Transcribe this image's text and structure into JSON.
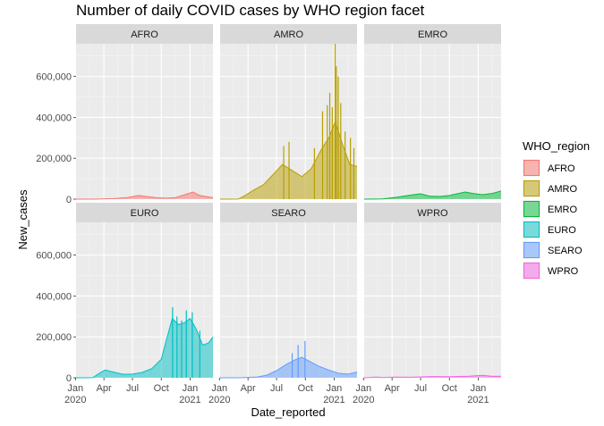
{
  "chart_data": {
    "type": "area",
    "title": "Number of daily COVID cases by WHO region facet",
    "xlabel": "Date_reported",
    "ylabel": "New_cases",
    "ylim": [
      0,
      760000
    ],
    "xlim": [
      "2020-01-03",
      "2021-03-15"
    ],
    "grid": true,
    "facet_layout": {
      "rows": 2,
      "cols": 3
    },
    "x_ticks": [
      {
        "date": "2020-01-01",
        "label": [
          "Jan",
          "2020"
        ]
      },
      {
        "date": "2020-04-01",
        "label": [
          "Apr"
        ]
      },
      {
        "date": "2020-07-01",
        "label": [
          "Jul"
        ]
      },
      {
        "date": "2020-10-01",
        "label": [
          "Oct"
        ]
      },
      {
        "date": "2021-01-01",
        "label": [
          "Jan",
          "2021"
        ]
      }
    ],
    "y_ticks": [
      {
        "value": 0,
        "label": "0"
      },
      {
        "value": 200000,
        "label": "200,000"
      },
      {
        "value": 400000,
        "label": "400,000"
      },
      {
        "value": 600000,
        "label": "600,000"
      }
    ],
    "legend": {
      "title": "WHO_region",
      "position": "right"
    },
    "series": [
      {
        "name": "AFRO",
        "color": "#F8766D",
        "points": [
          [
            "2020-01-03",
            0
          ],
          [
            "2020-03-01",
            100
          ],
          [
            "2020-05-01",
            2500
          ],
          [
            "2020-06-15",
            8000
          ],
          [
            "2020-07-20",
            18000
          ],
          [
            "2020-08-15",
            13000
          ],
          [
            "2020-09-15",
            7000
          ],
          [
            "2020-10-15",
            5000
          ],
          [
            "2020-11-15",
            8000
          ],
          [
            "2020-12-15",
            22000
          ],
          [
            "2021-01-10",
            35000
          ],
          [
            "2021-02-01",
            18000
          ],
          [
            "2021-03-15",
            7000
          ]
        ]
      },
      {
        "name": "AMRO",
        "color": "#B79F00",
        "points": [
          [
            "2020-01-03",
            0
          ],
          [
            "2020-03-01",
            500
          ],
          [
            "2020-03-25",
            20000
          ],
          [
            "2020-04-20",
            45000
          ],
          [
            "2020-05-20",
            70000
          ],
          [
            "2020-06-20",
            120000
          ],
          [
            "2020-07-20",
            170000
          ],
          [
            "2020-08-20",
            140000
          ],
          [
            "2020-09-20",
            110000
          ],
          [
            "2020-10-20",
            150000
          ],
          [
            "2020-11-20",
            240000
          ],
          [
            "2020-12-15",
            300000
          ],
          [
            "2021-01-05",
            380000
          ],
          [
            "2021-01-25",
            280000
          ],
          [
            "2021-02-20",
            170000
          ],
          [
            "2021-03-15",
            160000
          ]
        ],
        "spikes": [
          [
            "2020-07-24",
            260000
          ],
          [
            "2020-08-10",
            280000
          ],
          [
            "2020-10-30",
            250000
          ],
          [
            "2020-11-25",
            430000
          ],
          [
            "2020-12-10",
            460000
          ],
          [
            "2020-12-18",
            520000
          ],
          [
            "2020-12-26",
            450000
          ],
          [
            "2021-01-04",
            760000
          ],
          [
            "2021-01-08",
            650000
          ],
          [
            "2021-01-14",
            600000
          ],
          [
            "2021-01-22",
            470000
          ],
          [
            "2021-02-05",
            330000
          ],
          [
            "2021-02-22",
            300000
          ],
          [
            "2021-03-05",
            250000
          ]
        ]
      },
      {
        "name": "EMRO",
        "color": "#00BA38",
        "points": [
          [
            "2020-01-03",
            0
          ],
          [
            "2020-03-01",
            800
          ],
          [
            "2020-04-15",
            9000
          ],
          [
            "2020-06-01",
            20000
          ],
          [
            "2020-07-01",
            26000
          ],
          [
            "2020-08-01",
            14000
          ],
          [
            "2020-09-01",
            13000
          ],
          [
            "2020-10-01",
            18000
          ],
          [
            "2020-11-20",
            35000
          ],
          [
            "2020-12-15",
            28000
          ],
          [
            "2021-01-15",
            22000
          ],
          [
            "2021-02-15",
            28000
          ],
          [
            "2021-03-15",
            40000
          ]
        ]
      },
      {
        "name": "EURO",
        "color": "#00BFC4",
        "points": [
          [
            "2020-01-03",
            0
          ],
          [
            "2020-02-25",
            500
          ],
          [
            "2020-03-20",
            25000
          ],
          [
            "2020-04-05",
            38000
          ],
          [
            "2020-05-01",
            28000
          ],
          [
            "2020-06-01",
            17000
          ],
          [
            "2020-07-01",
            18000
          ],
          [
            "2020-08-01",
            26000
          ],
          [
            "2020-09-01",
            45000
          ],
          [
            "2020-10-01",
            90000
          ],
          [
            "2020-10-20",
            200000
          ],
          [
            "2020-11-05",
            290000
          ],
          [
            "2020-11-25",
            260000
          ],
          [
            "2020-12-15",
            270000
          ],
          [
            "2021-01-01",
            290000
          ],
          [
            "2021-01-20",
            240000
          ],
          [
            "2021-02-10",
            160000
          ],
          [
            "2021-03-01",
            170000
          ],
          [
            "2021-03-15",
            200000
          ]
        ],
        "spikes": [
          [
            "2020-11-06",
            345000
          ],
          [
            "2020-11-20",
            300000
          ],
          [
            "2020-12-05",
            280000
          ],
          [
            "2020-12-20",
            330000
          ],
          [
            "2021-01-08",
            320000
          ],
          [
            "2021-02-01",
            230000
          ]
        ]
      },
      {
        "name": "SEARO",
        "color": "#619CFF",
        "points": [
          [
            "2020-01-03",
            0
          ],
          [
            "2020-03-15",
            300
          ],
          [
            "2020-05-01",
            4000
          ],
          [
            "2020-06-01",
            13000
          ],
          [
            "2020-07-01",
            35000
          ],
          [
            "2020-08-01",
            65000
          ],
          [
            "2020-09-01",
            90000
          ],
          [
            "2020-09-20",
            100000
          ],
          [
            "2020-10-15",
            80000
          ],
          [
            "2020-11-15",
            55000
          ],
          [
            "2020-12-15",
            38000
          ],
          [
            "2021-01-15",
            22000
          ],
          [
            "2021-02-15",
            18000
          ],
          [
            "2021-03-15",
            28000
          ]
        ],
        "spikes": [
          [
            "2020-09-08",
            160000
          ],
          [
            "2020-09-30",
            180000
          ],
          [
            "2020-08-20",
            120000
          ]
        ]
      },
      {
        "name": "WPRO",
        "color": "#F564E3",
        "points": [
          [
            "2020-01-03",
            0
          ],
          [
            "2020-01-20",
            1500
          ],
          [
            "2020-02-10",
            4000
          ],
          [
            "2020-03-01",
            1200
          ],
          [
            "2020-04-10",
            3000
          ],
          [
            "2020-06-01",
            2500
          ],
          [
            "2020-08-01",
            6000
          ],
          [
            "2020-10-01",
            5500
          ],
          [
            "2020-12-01",
            7500
          ],
          [
            "2021-01-15",
            12000
          ],
          [
            "2021-02-15",
            7000
          ],
          [
            "2021-03-15",
            8000
          ]
        ]
      }
    ]
  }
}
